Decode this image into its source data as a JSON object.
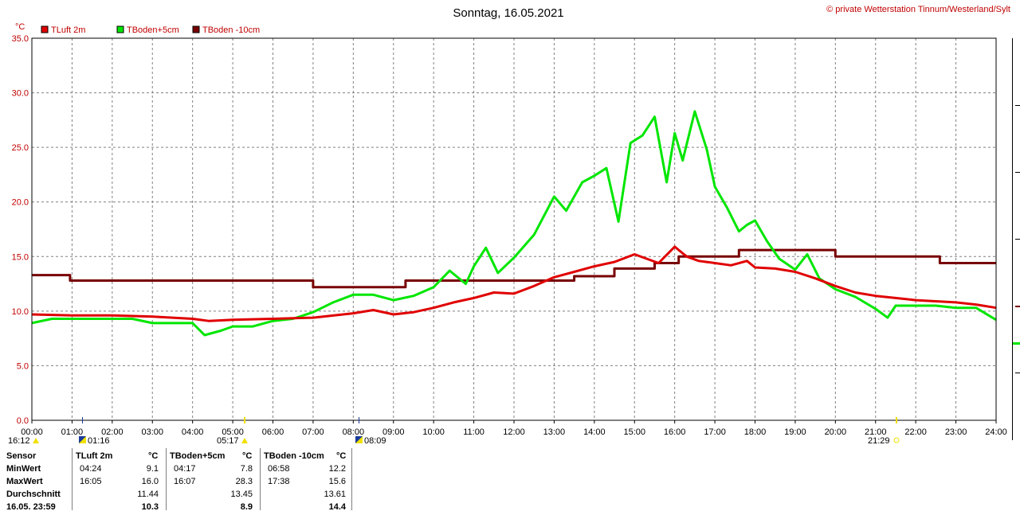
{
  "title": "Sonntag, 16.05.2021",
  "copyright": "© private Wetterstation Tinnum/Westerland/Sylt",
  "colors": {
    "tluft": "#e00000",
    "tboden5": "#00e600",
    "tboden10": "#780000",
    "grid": "#808080",
    "sun": "#f0e000"
  },
  "chart_data": {
    "type": "line",
    "ylabel": "°C",
    "ylim": [
      0,
      35
    ],
    "yticks": [
      "0.0",
      "5.0",
      "10.0",
      "15.0",
      "20.0",
      "25.0",
      "30.0",
      "35.0"
    ],
    "xlim": [
      0,
      24
    ],
    "xticks": [
      "00:00",
      "01:00",
      "02:00",
      "03:00",
      "04:00",
      "05:00",
      "06:00",
      "07:00",
      "08:00",
      "09:00",
      "10:00",
      "11:00",
      "12:00",
      "13:00",
      "14:00",
      "15:00",
      "16:00",
      "17:00",
      "18:00",
      "19:00",
      "20:00",
      "21:00",
      "22:00",
      "23:00",
      "24:00"
    ],
    "grid": true,
    "legend": "top-left",
    "series": [
      {
        "name": "TLuft 2m",
        "color": "#e00000",
        "x": [
          0,
          1,
          2,
          3,
          4,
          4.4,
          5,
          6,
          7,
          8,
          8.5,
          9,
          9.5,
          10,
          10.5,
          11,
          11.5,
          12,
          12.5,
          13,
          13.5,
          14,
          14.5,
          15,
          15.3,
          15.6,
          16,
          16.1,
          16.3,
          16.6,
          17,
          17.4,
          17.8,
          18,
          18.5,
          19,
          19.5,
          20,
          20.5,
          21,
          21.5,
          22,
          22.5,
          23,
          23.5,
          24
        ],
        "y": [
          9.7,
          9.6,
          9.6,
          9.5,
          9.3,
          9.1,
          9.2,
          9.3,
          9.4,
          9.8,
          10.1,
          9.7,
          9.9,
          10.3,
          10.8,
          11.2,
          11.7,
          11.6,
          12.3,
          13.1,
          13.6,
          14.1,
          14.5,
          15.2,
          14.8,
          14.4,
          15.9,
          15.6,
          15.0,
          14.6,
          14.4,
          14.2,
          14.6,
          14.0,
          13.9,
          13.6,
          13.0,
          12.3,
          11.7,
          11.4,
          11.2,
          11.0,
          10.9,
          10.8,
          10.6,
          10.3
        ]
      },
      {
        "name": "TBoden+5cm",
        "color": "#00e600",
        "x": [
          0,
          0.5,
          1,
          1.5,
          2,
          2.5,
          3,
          3.5,
          4,
          4.3,
          4.7,
          5,
          5.5,
          6,
          6.5,
          7,
          7.5,
          8,
          8.5,
          9,
          9.5,
          10,
          10.4,
          10.8,
          11,
          11.3,
          11.6,
          12,
          12.5,
          13,
          13.3,
          13.7,
          14,
          14.3,
          14.6,
          14.9,
          15.2,
          15.5,
          15.8,
          16,
          16.2,
          16.5,
          16.8,
          17,
          17.3,
          17.6,
          17.8,
          18,
          18.3,
          18.6,
          19,
          19.3,
          19.6,
          20,
          20.5,
          21,
          21.3,
          21.5,
          22,
          22.5,
          23,
          23.5,
          24
        ],
        "y": [
          8.9,
          9.3,
          9.3,
          9.3,
          9.3,
          9.3,
          8.9,
          8.9,
          8.9,
          7.8,
          8.2,
          8.6,
          8.6,
          9.1,
          9.3,
          9.9,
          10.8,
          11.5,
          11.5,
          11.0,
          11.4,
          12.2,
          13.7,
          12.5,
          14.1,
          15.8,
          13.5,
          14.9,
          17.0,
          20.5,
          19.2,
          21.8,
          22.4,
          23.1,
          18.2,
          25.4,
          26.1,
          27.8,
          21.8,
          26.3,
          23.8,
          28.3,
          24.8,
          21.4,
          19.5,
          17.3,
          17.9,
          18.3,
          16.4,
          14.8,
          13.8,
          15.2,
          13.0,
          12.0,
          11.3,
          10.2,
          9.4,
          10.5,
          10.5,
          10.5,
          10.3,
          10.3,
          9.2
        ]
      },
      {
        "name": "TBoden -10cm",
        "color": "#780000",
        "x": [
          0,
          0.95,
          0.95,
          7.0,
          7.0,
          9.3,
          9.3,
          13.5,
          13.5,
          14.5,
          14.5,
          15.5,
          15.5,
          16.1,
          16.1,
          17.6,
          17.6,
          20.0,
          20.0,
          22.6,
          22.6,
          24
        ],
        "y": [
          13.3,
          13.3,
          12.8,
          12.8,
          12.2,
          12.2,
          12.8,
          12.8,
          13.2,
          13.2,
          13.9,
          13.9,
          14.4,
          14.4,
          15.0,
          15.0,
          15.6,
          15.6,
          15.0,
          15.0,
          14.4,
          14.4
        ]
      }
    ]
  },
  "sun_times": {
    "sunrise_day": "16:12",
    "moon_rise": "01:16",
    "sunrise": "05:17",
    "moon_set": "08:09",
    "sunset": "21:29"
  },
  "stats": {
    "headers": {
      "sensor": "Sensor",
      "unit": "°C",
      "s1": "TLuft 2m",
      "s2": "TBoden+5cm",
      "s3": "TBoden -10cm"
    },
    "rows": [
      {
        "label": "MinWert",
        "t1": "04:24",
        "v1": "9.1",
        "t2": "04:17",
        "v2": "7.8",
        "t3": "06:58",
        "v3": "12.2"
      },
      {
        "label": "MaxWert",
        "t1": "16:05",
        "v1": "16.0",
        "t2": "16:07",
        "v2": "28.3",
        "t3": "17:38",
        "v3": "15.6"
      },
      {
        "label": "Durchschnitt",
        "t1": "",
        "v1": "11.44",
        "t2": "",
        "v2": "13.45",
        "t3": "",
        "v3": "13.61"
      },
      {
        "label": "16.05. 23:59",
        "t1": "",
        "v1": "10.3",
        "t2": "",
        "v2": "8.9",
        "t3": "",
        "v3": "14.4"
      }
    ]
  }
}
